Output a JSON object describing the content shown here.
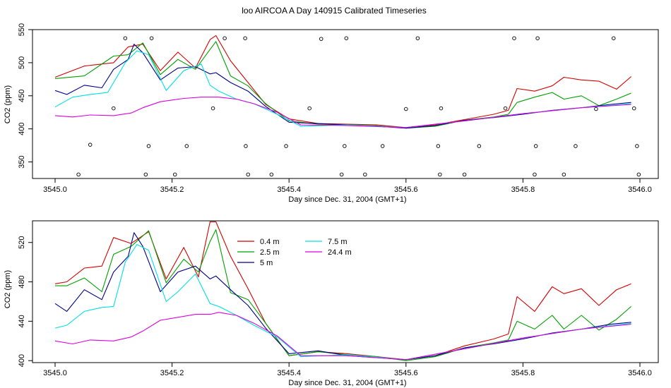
{
  "title": "loo AIRCOA A  Day 140915  Calibrated Timeseries",
  "chart_data": [
    {
      "type": "line",
      "xlabel": "Day since Dec. 31, 2004 (GMT+1)",
      "ylabel": "CO2 (ppm)",
      "xlim": [
        3545.0,
        3546.0
      ],
      "ylim": [
        325,
        550
      ],
      "xticks": [
        "3545.0",
        "3545.2",
        "3545.4",
        "3545.6",
        "3545.8",
        "3546.0"
      ],
      "yticks": [
        "350",
        "400",
        "450",
        "500",
        "550"
      ],
      "series": [
        {
          "label_key": "s04",
          "color": "#d40000",
          "x": [
            3545.0,
            3545.05,
            3545.1,
            3545.125,
            3545.15,
            3545.18,
            3545.21,
            3545.24,
            3545.265,
            3545.275,
            3545.3,
            3545.33,
            3545.36,
            3545.4,
            3545.45,
            3545.5,
            3545.55,
            3545.6,
            3545.65,
            3545.7,
            3545.75,
            3545.775,
            3545.79,
            3545.82,
            3545.85,
            3545.87,
            3545.9,
            3545.93,
            3545.96,
            3545.985
          ],
          "y": [
            478,
            495,
            500,
            524,
            528,
            488,
            516,
            492,
            535,
            541,
            503,
            470,
            437,
            415,
            408,
            407,
            406,
            402,
            406,
            414,
            422,
            428,
            461,
            457,
            465,
            478,
            474,
            472,
            460,
            479
          ]
        },
        {
          "label_key": "s25",
          "color": "#00a000",
          "x": [
            3545.0,
            3545.05,
            3545.1,
            3545.125,
            3545.15,
            3545.18,
            3545.21,
            3545.24,
            3545.265,
            3545.275,
            3545.3,
            3545.33,
            3545.36,
            3545.4,
            3545.45,
            3545.5,
            3545.55,
            3545.6,
            3545.65,
            3545.7,
            3545.75,
            3545.775,
            3545.79,
            3545.82,
            3545.85,
            3545.87,
            3545.9,
            3545.93,
            3545.96,
            3545.985
          ],
          "y": [
            476,
            480,
            510,
            512,
            530,
            482,
            505,
            490,
            520,
            532,
            480,
            465,
            438,
            412,
            407,
            406,
            405,
            401,
            404,
            413,
            418,
            422,
            440,
            448,
            455,
            445,
            450,
            435,
            445,
            454
          ]
        },
        {
          "label_key": "s5",
          "color": "#00008b",
          "x": [
            3545.0,
            3545.02,
            3545.05,
            3545.08,
            3545.1,
            3545.125,
            3545.135,
            3545.15,
            3545.18,
            3545.21,
            3545.24,
            3545.265,
            3545.275,
            3545.3,
            3545.33,
            3545.36,
            3545.4,
            3545.45,
            3545.5,
            3545.55,
            3545.6,
            3545.65,
            3545.7,
            3545.75,
            3545.8,
            3545.85,
            3545.9,
            3545.95,
            3545.985
          ],
          "y": [
            458,
            452,
            466,
            462,
            490,
            505,
            528,
            515,
            474,
            492,
            494,
            483,
            485,
            470,
            457,
            434,
            410,
            408,
            406,
            404,
            401,
            405,
            413,
            417,
            422,
            428,
            432,
            437,
            440
          ]
        },
        {
          "label_key": "s75",
          "color": "#00e0e0",
          "x": [
            3545.0,
            3545.03,
            3545.06,
            3545.09,
            3545.12,
            3545.14,
            3545.16,
            3545.19,
            3545.22,
            3545.25,
            3545.265,
            3545.28,
            3545.31,
            3545.34,
            3545.38,
            3545.42,
            3545.5,
            3545.6,
            3545.7,
            3545.8,
            3545.9,
            3545.985
          ],
          "y": [
            433,
            448,
            452,
            455,
            500,
            518,
            512,
            458,
            488,
            498,
            466,
            457,
            445,
            438,
            422,
            404,
            406,
            402,
            412,
            423,
            432,
            438
          ]
        },
        {
          "label_key": "s244",
          "color": "#dd00dd",
          "x": [
            3545.0,
            3545.03,
            3545.06,
            3545.1,
            3545.13,
            3545.15,
            3545.18,
            3545.22,
            3545.25,
            3545.28,
            3545.31,
            3545.34,
            3545.38,
            3545.42,
            3545.5,
            3545.6,
            3545.7,
            3545.8,
            3545.9,
            3545.985
          ],
          "y": [
            420,
            418,
            421,
            420,
            424,
            432,
            441,
            446,
            448,
            448,
            445,
            438,
            425,
            406,
            405,
            402,
            412,
            423,
            432,
            437
          ]
        }
      ],
      "points": {
        "x": [
          3545.04,
          3545.06,
          3545.1,
          3545.12,
          3545.155,
          3545.16,
          3545.165,
          3545.205,
          3545.225,
          3545.27,
          3545.29,
          3545.325,
          3545.326,
          3545.33,
          3545.37,
          3545.395,
          3545.435,
          3545.455,
          3545.49,
          3545.495,
          3545.498,
          3545.53,
          3545.56,
          3545.6,
          3545.62,
          3545.655,
          3545.658,
          3545.66,
          3545.7,
          3545.725,
          3545.77,
          3545.785,
          3545.82,
          3545.822,
          3545.825,
          3545.87,
          3545.89,
          3545.925,
          3545.955,
          3545.99,
          3545.995,
          3545.998
        ],
        "y": [
          331,
          376,
          431,
          537,
          331,
          374,
          537,
          331,
          374,
          431,
          537,
          537,
          374,
          331,
          331,
          374,
          431,
          536,
          331,
          374,
          537,
          331,
          374,
          430,
          537,
          374,
          331,
          431,
          331,
          374,
          431,
          537,
          331,
          374,
          537,
          331,
          374,
          430,
          537,
          431,
          374,
          331
        ]
      }
    },
    {
      "type": "line",
      "xlabel": "Day since Dec. 31, 2004 (GMT+1)",
      "ylabel": "CO2 (ppm)",
      "xlim": [
        3545.0,
        3546.0
      ],
      "ylim": [
        398,
        542
      ],
      "xticks": [
        "3545.0",
        "3545.2",
        "3545.4",
        "3545.6",
        "3545.8",
        "3546.0"
      ],
      "yticks": [
        "400",
        "440",
        "480",
        "520"
      ],
      "legend": [
        {
          "label": "0.4 m",
          "color": "#d40000"
        },
        {
          "label": "2.5 m",
          "color": "#00a000"
        },
        {
          "label": "5 m",
          "color": "#00008b"
        },
        {
          "label": "7.5 m",
          "color": "#00e0e0"
        },
        {
          "label": "24.4 m",
          "color": "#dd00dd"
        }
      ],
      "series": [
        {
          "name": "0.4 m",
          "color": "#d40000",
          "x": [
            3545.0,
            3545.02,
            3545.05,
            3545.08,
            3545.1,
            3545.13,
            3545.16,
            3545.19,
            3545.22,
            3545.245,
            3545.265,
            3545.275,
            3545.3,
            3545.33,
            3545.36,
            3545.4,
            3545.45,
            3545.5,
            3545.55,
            3545.6,
            3545.65,
            3545.7,
            3545.75,
            3545.775,
            3545.79,
            3545.82,
            3545.85,
            3545.87,
            3545.9,
            3545.93,
            3545.96,
            3545.985
          ],
          "y": [
            478,
            480,
            494,
            496,
            525,
            519,
            531,
            483,
            515,
            485,
            541,
            541,
            506,
            473,
            438,
            405,
            409,
            407,
            404,
            401,
            405,
            415,
            422,
            427,
            465,
            450,
            475,
            468,
            473,
            456,
            472,
            478
          ]
        },
        {
          "name": "2.5 m",
          "color": "#00a000",
          "x": [
            3545.0,
            3545.02,
            3545.05,
            3545.08,
            3545.1,
            3545.13,
            3545.16,
            3545.19,
            3545.22,
            3545.245,
            3545.265,
            3545.275,
            3545.3,
            3545.33,
            3545.36,
            3545.4,
            3545.45,
            3545.5,
            3545.55,
            3545.6,
            3545.65,
            3545.7,
            3545.75,
            3545.775,
            3545.79,
            3545.82,
            3545.85,
            3545.87,
            3545.9,
            3545.93,
            3545.96,
            3545.985
          ],
          "y": [
            476,
            476,
            484,
            470,
            508,
            516,
            532,
            479,
            503,
            490,
            521,
            533,
            469,
            462,
            438,
            405,
            409,
            406,
            404,
            400,
            404,
            413,
            418,
            421,
            440,
            432,
            446,
            432,
            446,
            431,
            442,
            455
          ]
        },
        {
          "name": "5 m",
          "color": "#00008b",
          "x": [
            3545.0,
            3545.02,
            3545.05,
            3545.08,
            3545.1,
            3545.125,
            3545.135,
            3545.15,
            3545.18,
            3545.21,
            3545.24,
            3545.265,
            3545.275,
            3545.3,
            3545.33,
            3545.36,
            3545.4,
            3545.45,
            3545.5,
            3545.55,
            3545.6,
            3545.65,
            3545.7,
            3545.75,
            3545.8,
            3545.85,
            3545.9,
            3545.95,
            3545.985
          ],
          "y": [
            458,
            450,
            472,
            462,
            490,
            506,
            530,
            516,
            470,
            490,
            496,
            483,
            486,
            472,
            456,
            433,
            407,
            410,
            405,
            403,
            401,
            405,
            413,
            417,
            422,
            428,
            432,
            437,
            439
          ]
        },
        {
          "name": "7.5 m",
          "color": "#00e0e0",
          "x": [
            3545.0,
            3545.02,
            3545.05,
            3545.08,
            3545.1,
            3545.12,
            3545.14,
            3545.16,
            3545.19,
            3545.21,
            3545.24,
            3545.265,
            3545.28,
            3545.31,
            3545.34,
            3545.38,
            3545.42,
            3545.5,
            3545.6,
            3545.7,
            3545.8,
            3545.9,
            3545.985
          ],
          "y": [
            433,
            436,
            450,
            454,
            455,
            500,
            518,
            512,
            460,
            470,
            488,
            458,
            455,
            446,
            436,
            424,
            404,
            406,
            401,
            412,
            423,
            432,
            438
          ]
        },
        {
          "name": "24.4 m",
          "color": "#dd00dd",
          "x": [
            3545.0,
            3545.03,
            3545.06,
            3545.1,
            3545.13,
            3545.15,
            3545.18,
            3545.21,
            3545.24,
            3545.265,
            3545.28,
            3545.31,
            3545.34,
            3545.38,
            3545.42,
            3545.5,
            3545.6,
            3545.7,
            3545.8,
            3545.9,
            3545.985
          ],
          "y": [
            420,
            417,
            421,
            420,
            424,
            430,
            441,
            444,
            447,
            447,
            449,
            446,
            438,
            425,
            405,
            405,
            401,
            412,
            423,
            432,
            437
          ]
        }
      ]
    }
  ]
}
